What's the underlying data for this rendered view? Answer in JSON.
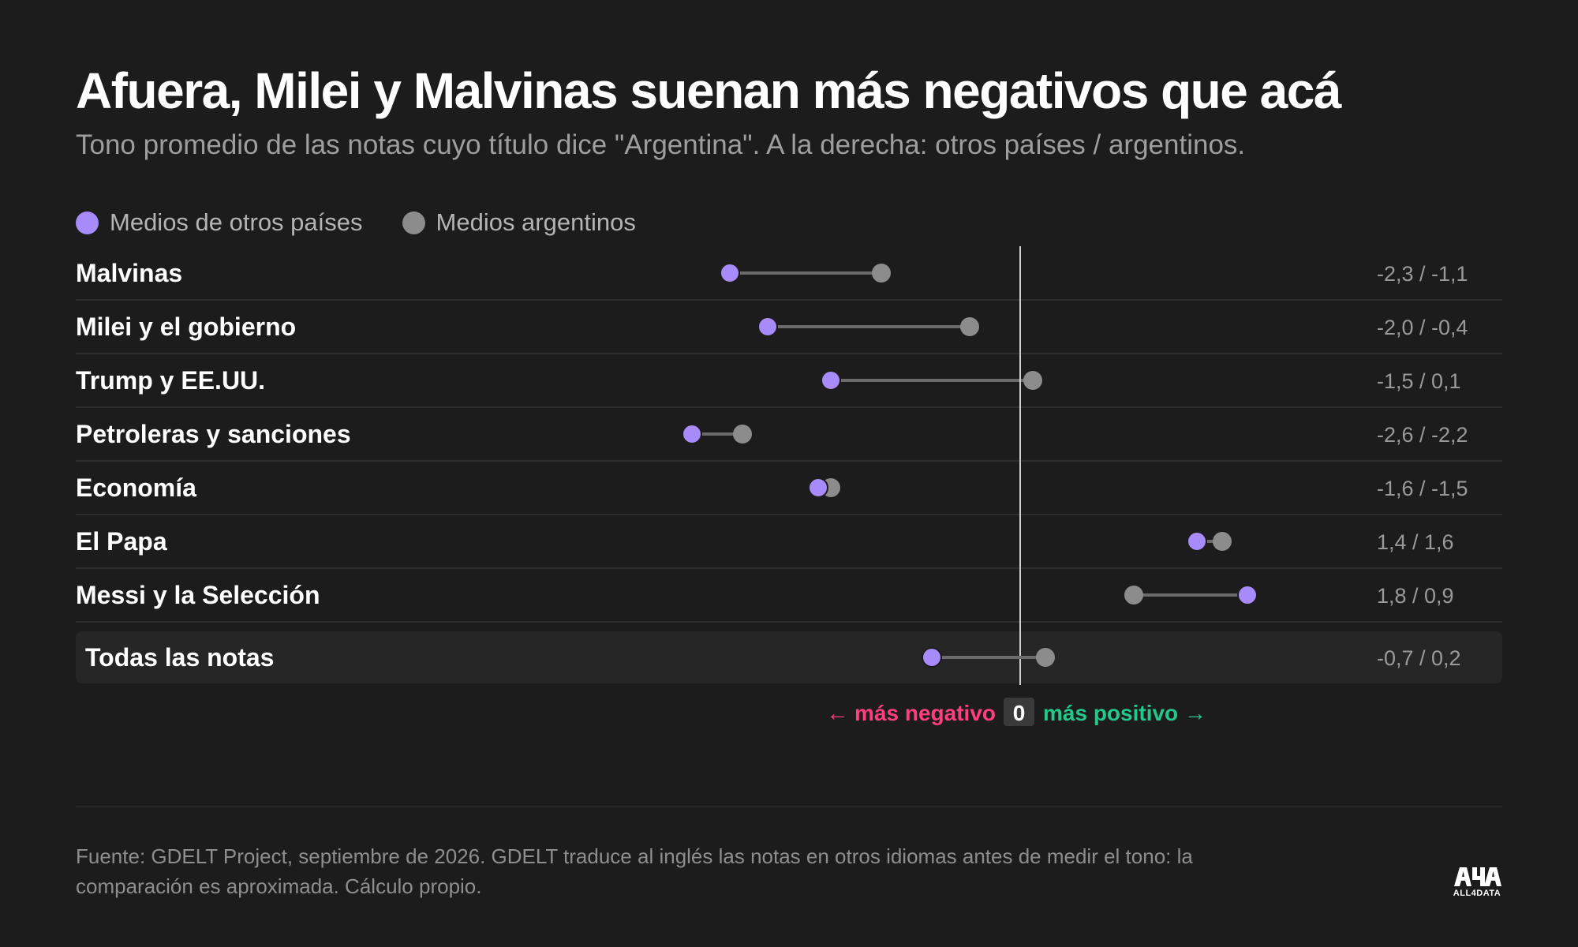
{
  "header": {
    "title": "Afuera, Milei y Malvinas suenan más negativos que acá",
    "subtitle": "Tono promedio de las notas cuyo título dice \"Argentina\". A la derecha: otros países / argentinos."
  },
  "legend": {
    "items": [
      {
        "label": "Medios de otros países",
        "color": "#a78bfa"
      },
      {
        "label": "Medios argentinos",
        "color": "#8c8c8c"
      }
    ]
  },
  "chart_data": {
    "type": "dumbbell",
    "x_range": [
      -3.1,
      2.3
    ],
    "reference_value": 0,
    "grid": false,
    "legend_position": "top-left",
    "series": [
      {
        "name": "Medios de otros países",
        "color": "#a78bfa"
      },
      {
        "name": "Medios argentinos",
        "color": "#8c8c8c"
      }
    ],
    "rows": [
      {
        "label": "Malvinas",
        "foreign": -2.3,
        "local": -1.1,
        "value_label": "-2,3 / -1,1"
      },
      {
        "label": "Milei y el gobierno",
        "foreign": -2.0,
        "local": -0.4,
        "value_label": "-2,0 / -0,4"
      },
      {
        "label": "Trump y EE.UU.",
        "foreign": -1.5,
        "local": 0.1,
        "value_label": "-1,5 / 0,1"
      },
      {
        "label": "Petroleras y sanciones",
        "foreign": -2.6,
        "local": -2.2,
        "value_label": "-2,6 / -2,2"
      },
      {
        "label": "Economía",
        "foreign": -1.6,
        "local": -1.5,
        "value_label": "-1,6 / -1,5"
      },
      {
        "label": "El Papa",
        "foreign": 1.4,
        "local": 1.6,
        "value_label": "1,4 / 1,6"
      },
      {
        "label": "Messi y la Selección",
        "foreign": 1.8,
        "local": 0.9,
        "value_label": "1,8 / 0,9"
      }
    ],
    "total": {
      "label": "Todas las notas",
      "foreign": -0.7,
      "local": 0.2,
      "value_label": "-0,7 / 0,2"
    },
    "axis_labels": {
      "negative": "← más negativo",
      "zero": "0",
      "positive": "más positivo →",
      "negative_color": "#ff3d7f",
      "positive_color": "#22c98a"
    }
  },
  "footer": {
    "source": "Fuente: GDELT Project, septiembre de 2026. GDELT traduce al inglés las notas en otros idiomas antes de medir el tono: la comparación es aproximada. Cálculo propio.",
    "logo_text": "ALL4DATA"
  }
}
